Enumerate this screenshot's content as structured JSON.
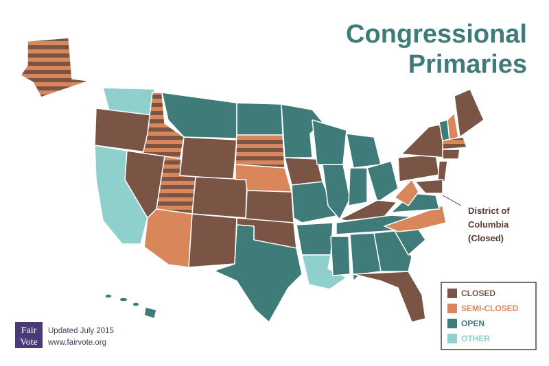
{
  "title": [
    "Congressional",
    "Primaries"
  ],
  "dc_note": [
    "District of",
    "Columbia",
    "(Closed)"
  ],
  "legend": [
    {
      "label": "CLOSED",
      "color": "#7a5546"
    },
    {
      "label": "SEMI-CLOSED",
      "color": "#d9865a"
    },
    {
      "label": "OPEN",
      "color": "#3f7b78"
    },
    {
      "label": "OTHER",
      "color": "#8fcfcc"
    }
  ],
  "logo": [
    "Fair",
    "Vote"
  ],
  "footer": [
    "Updated July 2015",
    "www.fairvote.org"
  ]
}
